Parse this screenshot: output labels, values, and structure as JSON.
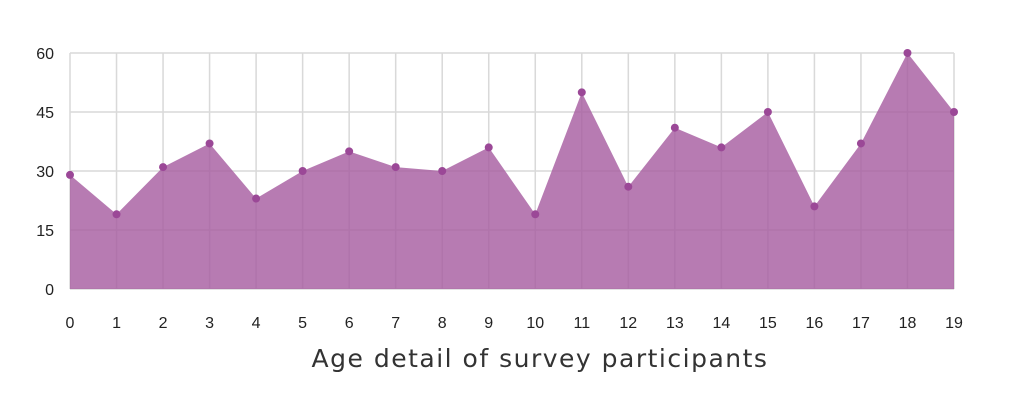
{
  "chart_data": {
    "type": "area",
    "xlabel": "Age detail of survey participants",
    "x": [
      0,
      1,
      2,
      3,
      4,
      5,
      6,
      7,
      8,
      9,
      10,
      11,
      12,
      13,
      14,
      15,
      16,
      17,
      18,
      19
    ],
    "x_tick_labels": [
      "0",
      "1",
      "2",
      "3",
      "4",
      "5",
      "6",
      "7",
      "8",
      "9",
      "10",
      "11",
      "12",
      "13",
      "14",
      "15",
      "16",
      "17",
      "18",
      "19"
    ],
    "series": [
      {
        "values": [
          29,
          19,
          31,
          37,
          23,
          30,
          35,
          31,
          30,
          36,
          19,
          50,
          26,
          41,
          36,
          45,
          21,
          37,
          60,
          45
        ]
      }
    ],
    "ylim": [
      0,
      60
    ],
    "y_ticks": [
      0,
      15,
      30,
      45,
      60
    ],
    "y_tick_labels": [
      "0",
      "15",
      "30",
      "45",
      "60"
    ],
    "grid": true,
    "colors": {
      "fill": "#a55a9f",
      "marker": "#9b4897"
    }
  }
}
